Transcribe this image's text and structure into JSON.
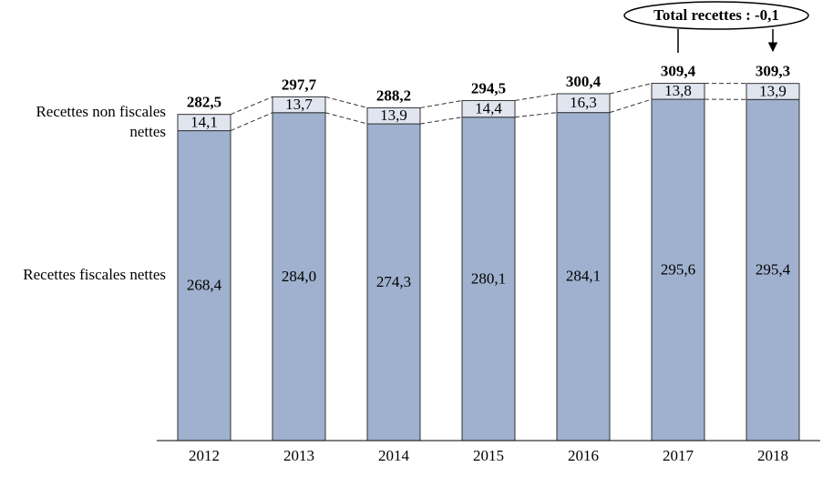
{
  "chart_data": {
    "type": "stacked_bar",
    "categories": [
      "2012",
      "2013",
      "2014",
      "2015",
      "2016",
      "2017",
      "2018"
    ],
    "series": [
      {
        "name": "Recettes fiscales nettes",
        "color": "#9fb1ce",
        "values": [
          268.4,
          284.0,
          274.3,
          280.1,
          284.1,
          295.6,
          295.4
        ],
        "value_labels": [
          "268,4",
          "284,0",
          "274,3",
          "280,1",
          "284,1",
          "295,6",
          "295,4"
        ]
      },
      {
        "name": "Recettes non fiscales nettes",
        "color": "#e0e5f0",
        "values": [
          14.1,
          13.7,
          13.9,
          14.4,
          16.3,
          13.8,
          13.9
        ],
        "value_labels": [
          "14,1",
          "13,7",
          "13,9",
          "14,4",
          "16,3",
          "13,8",
          "13,9"
        ]
      }
    ],
    "totals": {
      "values": [
        282.5,
        297.7,
        288.2,
        294.5,
        300.4,
        309.4,
        309.3
      ],
      "value_labels": [
        "282,5",
        "297,7",
        "288,2",
        "294,5",
        "300,4",
        "309,4",
        "309,3"
      ]
    },
    "annotation": "Total recettes : -0,1",
    "ylim": [
      0,
      380
    ]
  }
}
